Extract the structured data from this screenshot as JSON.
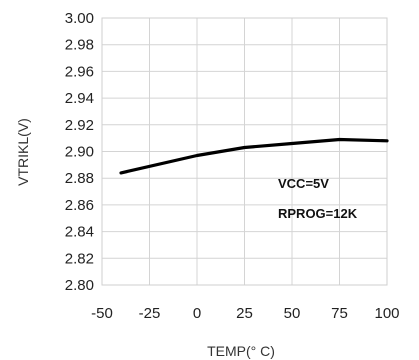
{
  "chart_data": {
    "type": "line",
    "title": "",
    "xlabel": "TEMP(° C)",
    "ylabel": "VTRIKL(V)",
    "xlim": [
      -50,
      100
    ],
    "ylim": [
      2.8,
      3.0
    ],
    "x_ticks": [
      "-50",
      "-25",
      "0",
      "25",
      "50",
      "75",
      "100"
    ],
    "y_ticks": [
      "2.80",
      "2.82",
      "2.84",
      "2.86",
      "2.88",
      "2.90",
      "2.92",
      "2.94",
      "2.96",
      "2.98",
      "3.00"
    ],
    "grid": true,
    "series": [
      {
        "color": "#000000",
        "x": [
          -40,
          0,
          25,
          50,
          75,
          100
        ],
        "y": [
          2.884,
          2.897,
          2.903,
          2.906,
          2.909,
          2.908
        ]
      }
    ],
    "annotations": [
      "VCC=5V",
      "RPROG=12K"
    ]
  }
}
